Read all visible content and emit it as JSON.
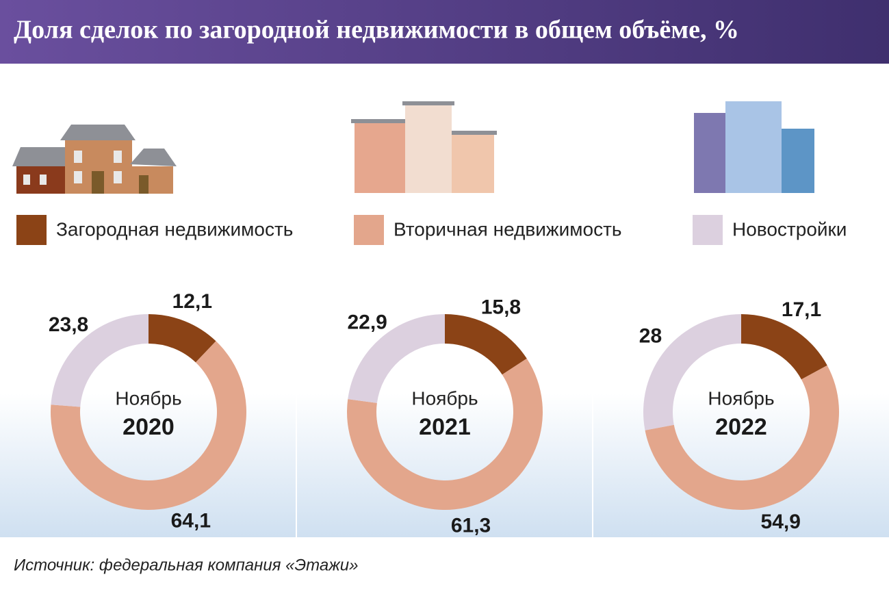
{
  "title": "Доля сделок по загородной недвижимости в общем объёме, %",
  "source": "Источник: федеральная компания «Этажи»",
  "chart_data": [
    {
      "type": "donut",
      "title": "Ноябрь",
      "subtitle": "2020",
      "categories": [
        "Загородная недвижимость",
        "Вторичная недвижимость",
        "Новостройки"
      ],
      "values": [
        12.1,
        64.1,
        23.8
      ],
      "value_labels": [
        "12,1",
        "64,1",
        "23,8"
      ],
      "colors": [
        "#8b4316",
        "#e3a68c",
        "#dcd0df"
      ]
    },
    {
      "type": "donut",
      "title": "Ноябрь",
      "subtitle": "2021",
      "categories": [
        "Загородная недвижимость",
        "Вторичная недвижимость",
        "Новостройки"
      ],
      "values": [
        15.8,
        61.3,
        22.9
      ],
      "value_labels": [
        "15,8",
        "61,3",
        "22,9"
      ],
      "colors": [
        "#8b4316",
        "#e3a68c",
        "#dcd0df"
      ]
    },
    {
      "type": "donut",
      "title": "Ноябрь",
      "subtitle": "2022",
      "categories": [
        "Загородная недвижимость",
        "Вторичная недвижимость",
        "Новостройки"
      ],
      "values": [
        17.1,
        54.9,
        28
      ],
      "value_labels": [
        "17,1",
        "54,9",
        "28"
      ],
      "colors": [
        "#8b4316",
        "#e3a68c",
        "#dcd0df"
      ]
    }
  ]
}
